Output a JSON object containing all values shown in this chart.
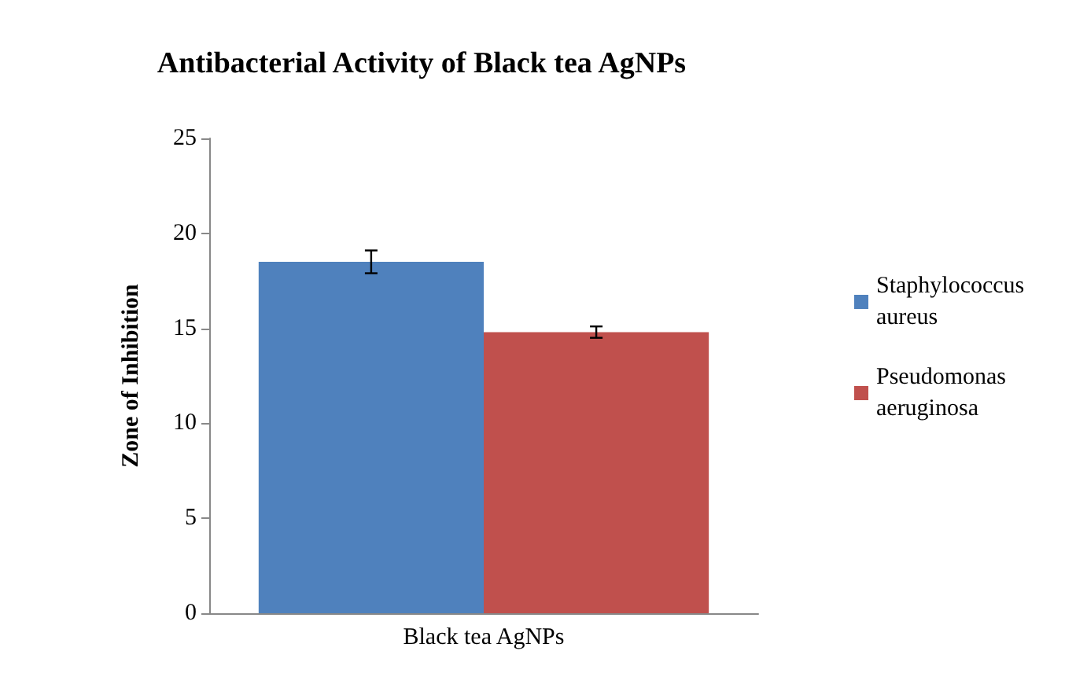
{
  "chart_data": {
    "type": "bar",
    "title": "Antibacterial Activity of Black tea AgNPs",
    "ylabel": "Zone of Inhibition",
    "categories": [
      "Black tea AgNPs"
    ],
    "series": [
      {
        "name": "Staphylococcus aureus",
        "color": "#4f81bd",
        "values": [
          18.5
        ],
        "errors": [
          0.6
        ]
      },
      {
        "name": "Pseudomonas aeruginosa",
        "color": "#c0504d",
        "values": [
          14.8
        ],
        "errors": [
          0.3
        ]
      }
    ],
    "ylim": [
      0,
      25
    ],
    "yticks": [
      0,
      5,
      10,
      15,
      20,
      25
    ],
    "grid": false,
    "legend": "right"
  }
}
